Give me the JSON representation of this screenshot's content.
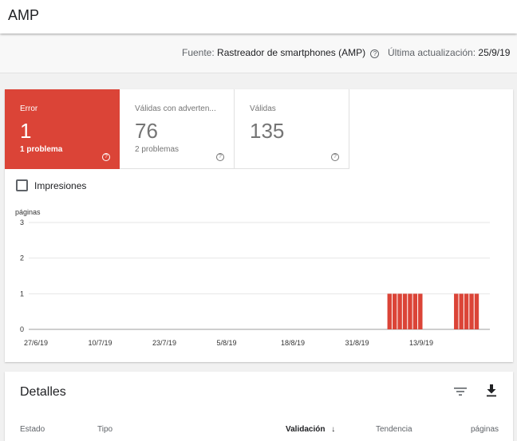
{
  "header": {
    "title": "AMP"
  },
  "source_bar": {
    "source_label": "Fuente:",
    "source_value": "Rastreador de smartphones (AMP)",
    "updated_label": "Última actualización:",
    "updated_value": "25/9/19"
  },
  "tiles": [
    {
      "label": "Error",
      "count": "1",
      "sub": "1 problema"
    },
    {
      "label": "Válidas con adverten...",
      "count": "76",
      "sub": "2 problemas"
    },
    {
      "label": "Válidas",
      "count": "135",
      "sub": ""
    }
  ],
  "impressions_label": "Impresiones",
  "chart_data": {
    "type": "bar",
    "ylabel": "páginas",
    "ylim": [
      0,
      3
    ],
    "yticks": [
      "3",
      "2",
      "1",
      "0"
    ],
    "x_ticks": [
      "27/6/19",
      "10/7/19",
      "23/7/19",
      "5/8/19",
      "18/8/19",
      "31/8/19",
      "13/9/19"
    ],
    "x_range": [
      "2019-06-27",
      "2019-09-25"
    ],
    "bar_color": "#db4437",
    "series": [
      {
        "points": [
          {
            "date": "2019-09-05",
            "value": 1
          },
          {
            "date": "2019-09-06",
            "value": 1
          },
          {
            "date": "2019-09-07",
            "value": 1
          },
          {
            "date": "2019-09-08",
            "value": 1
          },
          {
            "date": "2019-09-09",
            "value": 1
          },
          {
            "date": "2019-09-10",
            "value": 1
          },
          {
            "date": "2019-09-11",
            "value": 1
          },
          {
            "date": "2019-09-18",
            "value": 1
          },
          {
            "date": "2019-09-19",
            "value": 1
          },
          {
            "date": "2019-09-20",
            "value": 1
          },
          {
            "date": "2019-09-21",
            "value": 1
          },
          {
            "date": "2019-09-22",
            "value": 1
          }
        ]
      }
    ]
  },
  "details": {
    "title": "Detalles",
    "columns": {
      "estado": "Estado",
      "tipo": "Tipo",
      "validacion": "Validación",
      "tendencia": "Tendencia",
      "paginas": "páginas"
    }
  },
  "colors": {
    "error": "#db4437",
    "accent": "#202124"
  }
}
